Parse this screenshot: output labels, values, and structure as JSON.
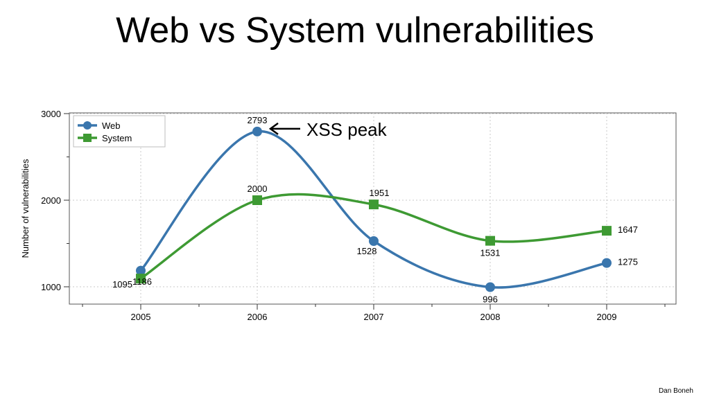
{
  "slide": {
    "title": "Web vs System vulnerabilities",
    "footer": "Dan Boneh"
  },
  "chart_data": {
    "type": "line",
    "x": [
      2005,
      2006,
      2007,
      2008,
      2009
    ],
    "xticks": [
      "2005",
      "2006",
      "2007",
      "2008",
      "2009"
    ],
    "ylabel": "Number of vulnerabilities",
    "ylim": [
      1000,
      3000
    ],
    "yticks": [
      "1000",
      "2000",
      "3000"
    ],
    "grid": true,
    "legend_position": "top-left",
    "series": [
      {
        "name": "Web",
        "values": [
          1186,
          2793,
          1528,
          996,
          1275
        ],
        "labels": [
          "1186",
          "2793",
          "1528",
          "996",
          "1275"
        ],
        "color": "#3a76ad",
        "marker": "circle"
      },
      {
        "name": "System",
        "values": [
          1095,
          2000,
          1951,
          1531,
          1647
        ],
        "labels": [
          "1095",
          "2000",
          "1951",
          "1531",
          "1647"
        ],
        "color": "#3e9a33",
        "marker": "square"
      }
    ],
    "annotation": {
      "text": "XSS peak",
      "series": "Web",
      "x": 2006
    }
  }
}
